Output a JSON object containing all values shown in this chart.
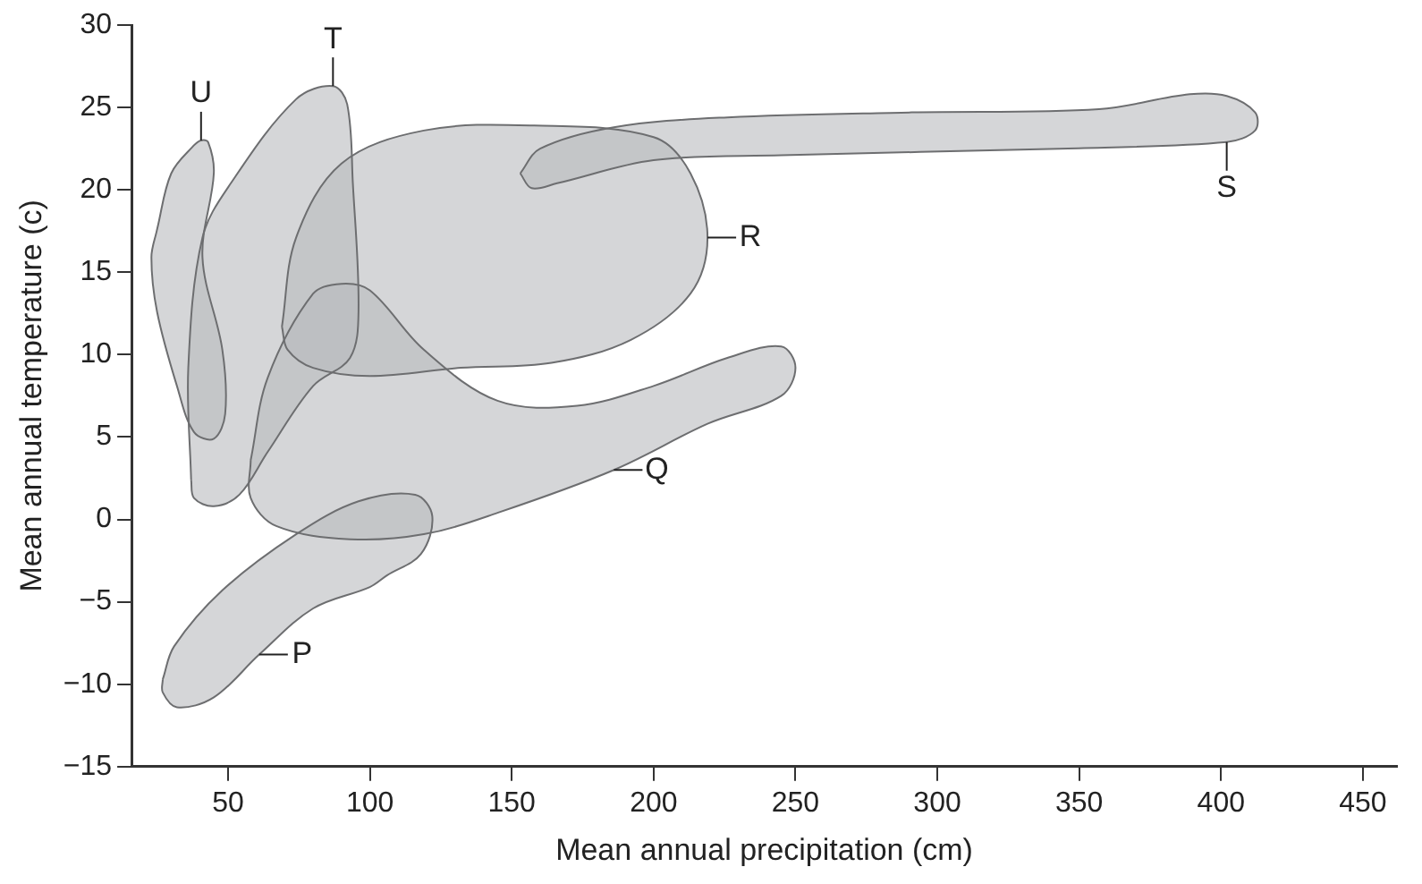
{
  "chart_data": {
    "type": "area",
    "xlabel": "Mean annual precipitation (cm)",
    "ylabel": "Mean annual temperature (c)",
    "xlim": [
      16,
      462
    ],
    "ylim": [
      -15,
      30
    ],
    "xticks": [
      50,
      100,
      150,
      200,
      250,
      300,
      350,
      400,
      450
    ],
    "yticks": [
      -15,
      -10,
      -5,
      0,
      5,
      10,
      15,
      20,
      25,
      30
    ],
    "grid": false,
    "legend": false,
    "series": [
      {
        "color": "#b9bbbe",
        "x": [
          27,
          31,
          48,
          74,
          96,
          116,
          122,
          118,
          106,
          100,
          80,
          61,
          45,
          32,
          27
        ],
        "values": [
          -9.7,
          -7.7,
          -4.3,
          -0.9,
          1.1,
          1.5,
          0.2,
          -2.1,
          -3.4,
          -4.1,
          -5.4,
          -8.2,
          -10.8,
          -11.4,
          -10.5
        ]
      },
      {
        "color": "#b9bbbe",
        "x": [
          58,
          64,
          80,
          90,
          100,
          119,
          145,
          173,
          200,
          226,
          245,
          250,
          245,
          219,
          186,
          145,
          119,
          93,
          67,
          58
        ],
        "values": [
          3.6,
          8.6,
          13.7,
          14.3,
          13.9,
          10.3,
          7.2,
          6.9,
          8.1,
          9.8,
          10.5,
          9.2,
          7.5,
          5.8,
          3.0,
          0.4,
          -0.9,
          -1.2,
          -0.4,
          1.3
        ]
      },
      {
        "color": "#b9bbbe",
        "x": [
          69,
          74,
          90,
          119,
          158,
          200,
          213,
          219,
          213,
          192,
          164,
          132,
          100,
          80,
          71
        ],
        "values": [
          11.7,
          17.1,
          21.6,
          23.6,
          23.9,
          23.2,
          21.0,
          17.1,
          13.7,
          10.9,
          9.5,
          9.2,
          8.7,
          9.2,
          10.3
        ]
      },
      {
        "color": "#b9bbbe",
        "x": [
          153,
          160,
          186,
          226,
          291,
          357,
          389,
          402,
          412,
          412,
          402,
          343,
          245,
          200,
          166,
          157
        ],
        "values": [
          21.0,
          22.5,
          23.8,
          24.4,
          24.7,
          24.9,
          25.8,
          25.7,
          24.7,
          23.6,
          22.9,
          22.5,
          22.1,
          21.8,
          20.4,
          20.1
        ]
      },
      {
        "color": "#b9bbbe",
        "x": [
          37,
          36,
          41,
          51,
          74,
          87,
          92,
          94,
          96,
          93,
          80,
          64,
          54,
          45,
          38
        ],
        "values": [
          2.4,
          9.2,
          17.1,
          20.4,
          25.5,
          26.3,
          25.2,
          20.4,
          12.6,
          9.8,
          8.1,
          4.1,
          1.5,
          0.8,
          1.3
        ]
      },
      {
        "color": "#b9bbbe",
        "x": [
          25,
          30,
          38,
          40.5,
          43,
          45,
          41,
          48,
          49,
          45,
          38,
          32,
          25,
          23
        ],
        "values": [
          17.6,
          21.0,
          22.7,
          23.0,
          22.9,
          21.0,
          15.9,
          10.3,
          6.4,
          4.9,
          5.3,
          8.1,
          12.6,
          15.9
        ]
      }
    ],
    "annotations": [
      {
        "text": "P",
        "x": 61,
        "y": -8.2
      },
      {
        "text": "Q",
        "x": 186,
        "y": 3.0
      },
      {
        "text": "R",
        "x": 219,
        "y": 17.1
      },
      {
        "text": "S",
        "x": 402,
        "y": 22.9
      },
      {
        "text": "T",
        "x": 87,
        "y": 26.3
      },
      {
        "text": "U",
        "x": 40.5,
        "y": 23.0
      }
    ]
  }
}
